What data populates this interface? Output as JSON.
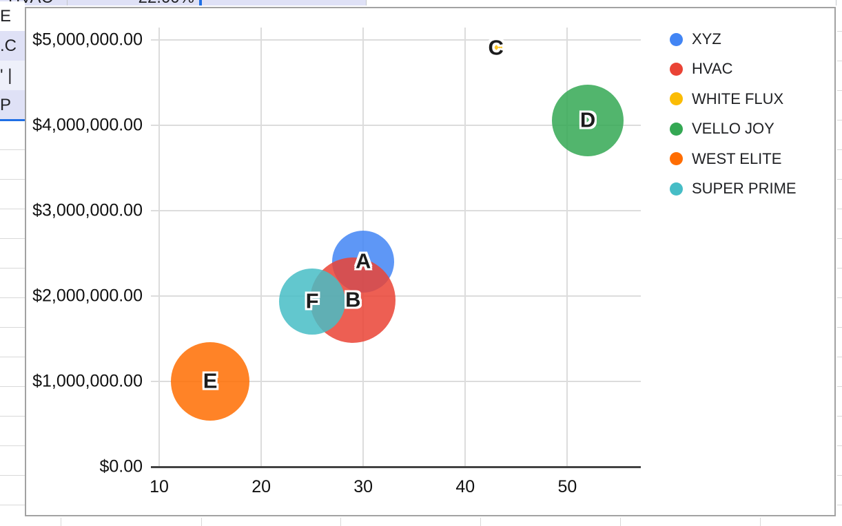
{
  "spreadsheet": {
    "top_row": {
      "company": "HVAC",
      "percent": "22.00%"
    },
    "left_column_fragments": [
      "E",
      ".C",
      "' |",
      "P"
    ],
    "colors": {
      "row_highlight": "#dfe1f6",
      "row_highlight_light": "#eef0fa",
      "selection_border": "#1f6fe5",
      "gridline": "#d8d8d8"
    }
  },
  "chart_data": {
    "type": "bubble",
    "title": "",
    "xlabel": "",
    "ylabel": "",
    "grid": true,
    "legend_position": "right",
    "bubble_opacity": 0.85,
    "x_axis": {
      "min": 10,
      "max": 57,
      "ticks": [
        10,
        20,
        30,
        40,
        50
      ]
    },
    "y_axis": {
      "min": 0,
      "max": 5000000,
      "ticks": [
        {
          "label": "$0.00",
          "value": 0
        },
        {
          "label": "$1,000,000.00",
          "value": 1000000
        },
        {
          "label": "$2,000,000.00",
          "value": 2000000
        },
        {
          "label": "$3,000,000.00",
          "value": 3000000
        },
        {
          "label": "$4,000,000.00",
          "value": 4000000
        },
        {
          "label": "$5,000,000.00",
          "value": 5000000
        }
      ]
    },
    "series": [
      {
        "name": "XYZ",
        "point_label": "A",
        "x": 30,
        "y": 2400000,
        "radius_px": 45,
        "color": "#4285F4"
      },
      {
        "name": "HVAC",
        "point_label": "B",
        "x": 29,
        "y": 1950000,
        "radius_px": 62,
        "color": "#EA4335"
      },
      {
        "name": "WHITE FLUX",
        "point_label": "C",
        "x": 43,
        "y": 4900000,
        "radius_px": 9,
        "color": "#FBBC04"
      },
      {
        "name": "VELLO JOY",
        "point_label": "D",
        "x": 52,
        "y": 4050000,
        "radius_px": 52,
        "color": "#34A853"
      },
      {
        "name": "WEST ELITE",
        "point_label": "E",
        "x": 15,
        "y": 1000000,
        "radius_px": 57,
        "color": "#FF6D01"
      },
      {
        "name": "SUPER PRIME",
        "point_label": "F",
        "x": 25,
        "y": 1930000,
        "radius_px": 48,
        "color": "#46BDC6"
      }
    ]
  }
}
